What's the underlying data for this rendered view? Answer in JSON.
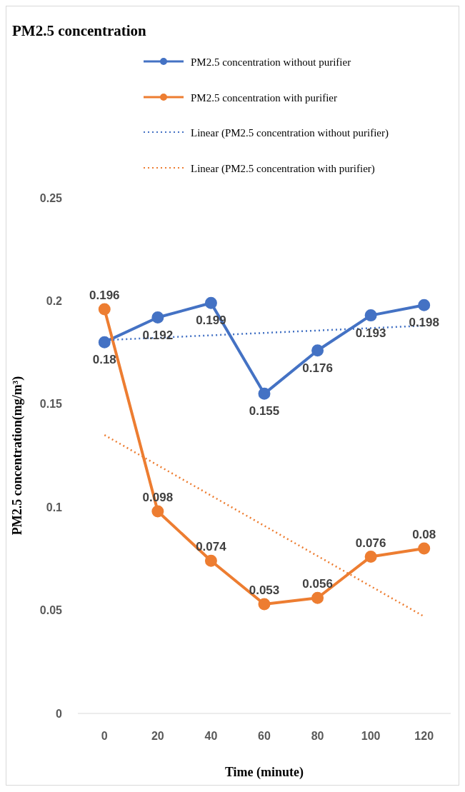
{
  "chart_data": {
    "type": "line",
    "title": "PM2.5 concentration",
    "xlabel": "Time (minute)",
    "ylabel": "PM2.5 concentration(mg/m³)",
    "categories": [
      "0",
      "20",
      "40",
      "60",
      "80",
      "100",
      "120"
    ],
    "series": [
      {
        "name": "PM2.5 concentration without purifier",
        "color": "#4472c4",
        "values": [
          0.18,
          0.192,
          0.199,
          0.155,
          0.176,
          0.193,
          0.198
        ],
        "value_labels": [
          "0.18",
          "0.192",
          "0.199",
          "0.155",
          "0.176",
          "0.193",
          "0.198"
        ]
      },
      {
        "name": "PM2.5 concentration with purifier",
        "color": "#ed7d31",
        "values": [
          0.196,
          0.098,
          0.074,
          0.053,
          0.056,
          0.076,
          0.08
        ],
        "value_labels": [
          "0.196",
          "0.098",
          "0.074",
          "0.053",
          "0.056",
          "0.076",
          "0.08"
        ]
      },
      {
        "name": "Linear (PM2.5 concentration without purifier)",
        "color": "#4472c4",
        "type": "line",
        "x": [
          "0",
          "120"
        ],
        "values": [
          0.181,
          0.188
        ],
        "marker": "none",
        "line_style": "dotted"
      },
      {
        "name": "Linear (PM2.5 concentration with purifier)",
        "color": "#ed7d31",
        "type": "line",
        "x": [
          "0",
          "120"
        ],
        "values": [
          0.135,
          0.047
        ],
        "marker": "none",
        "line_style": "dotted"
      }
    ],
    "ylim": [
      0,
      0.25
    ],
    "yticks": [
      0,
      0.05,
      0.1,
      0.15,
      0.2,
      0.25
    ],
    "grid": false,
    "legend": "top",
    "marker": "circle",
    "line_style": "solid"
  }
}
